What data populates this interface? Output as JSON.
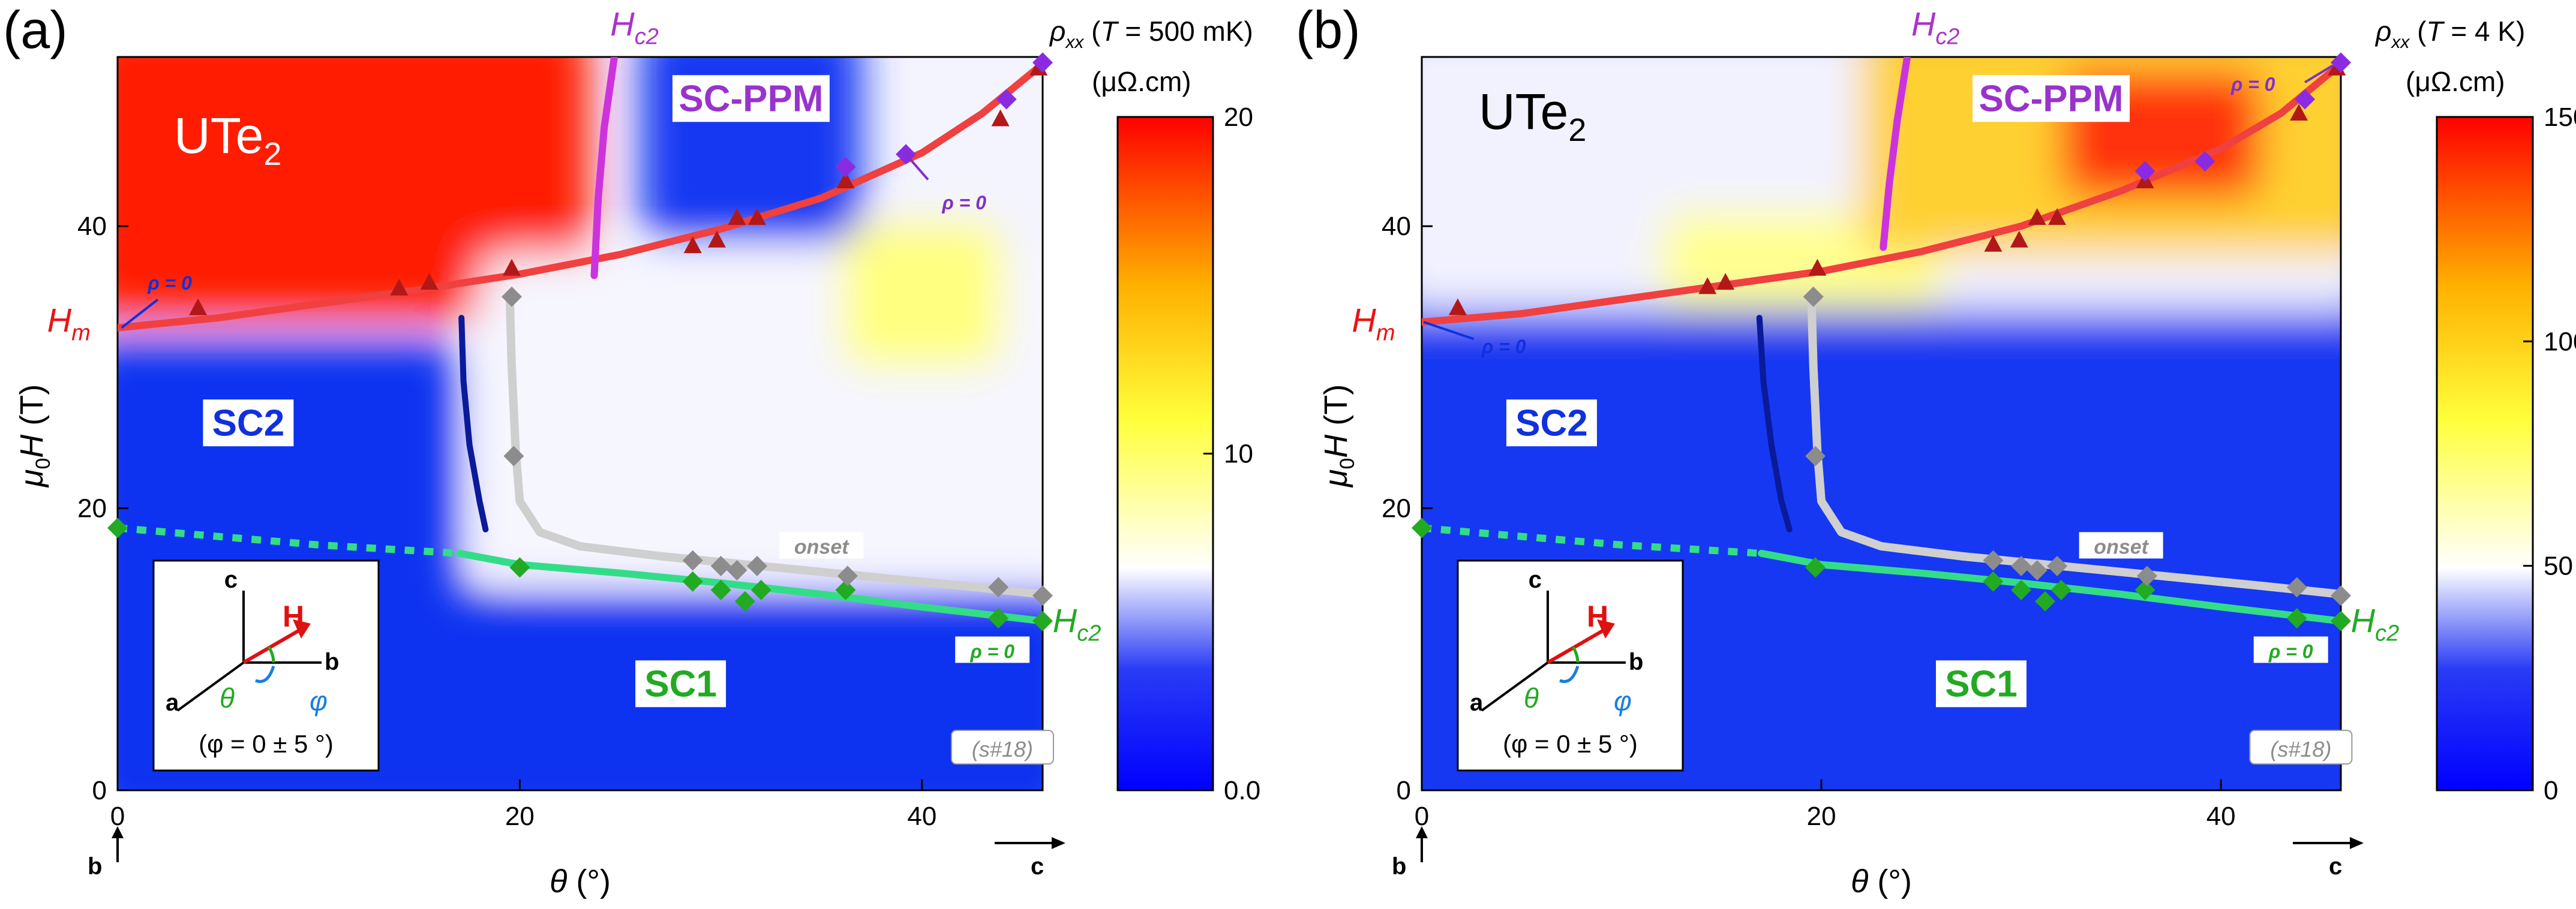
{
  "chart_data": [
    {
      "panel_label": "(a)",
      "type": "heatmap",
      "material": {
        "base": "UTe",
        "sub": "2"
      },
      "colorbar": {
        "title": {
          "rho": "ρ",
          "sub": "xx",
          "paren_open": " (",
          "T": "T",
          "rest": " = 500 mK)"
        },
        "unit": "(μΩ.cm)",
        "ticks": [
          {
            "value": 0,
            "label": "0.0"
          },
          {
            "value": 10,
            "label": "10"
          },
          {
            "value": 20,
            "label": "20"
          }
        ],
        "range": [
          0,
          20
        ],
        "colors": [
          "#0000ff",
          "#2a3cf4",
          "#ffffff",
          "#ffff3c",
          "#ffb000",
          "#ff0000"
        ]
      },
      "xaxis": {
        "label_main": "θ",
        "label_unit": " (°)",
        "range": [
          0,
          46
        ],
        "ticks": [
          0,
          20,
          40
        ],
        "left_end": "b",
        "right_end": "c"
      },
      "yaxis": {
        "label_main": "μ",
        "label_sub": "0",
        "label_H": "H",
        "label_unit": " (T)",
        "range": [
          0,
          52
        ],
        "ticks": [
          0,
          20,
          40
        ]
      },
      "regions": [
        {
          "text": "SC-PPM",
          "color": "#9933cc",
          "box": true,
          "theta": 31.5,
          "field": 48.5
        },
        {
          "text": "SC2",
          "color": "#1030e0",
          "box": true,
          "theta": 6.5,
          "field": 25.5
        },
        {
          "text": "SC1",
          "color": "#22aa22",
          "box": true,
          "theta": 28,
          "field": 7
        }
      ],
      "curve_labels": {
        "hc2_top": {
          "text": "H",
          "sub": "c2",
          "color": "#aa33cc",
          "theta": 24.5,
          "field": 53.5
        },
        "hm": {
          "text": "H",
          "sub": "m",
          "color": "#ee1111",
          "theta": -3.5,
          "field": 32.5
        },
        "hc2_right": {
          "text": "H",
          "sub": "c2",
          "color": "#22aa22",
          "theta": 46.5,
          "field": 11.2
        },
        "onset": {
          "text": "onset",
          "theta": 35,
          "field": 17.2
        },
        "rho_hm": {
          "text": "ρ = 0",
          "color": "#1030e0",
          "theta": 1.5,
          "field": 35.5
        },
        "rho_ppm": {
          "text": "ρ = 0",
          "color": "#8030cc",
          "theta": 41,
          "field": 41.2
        },
        "rho_sc1": {
          "text": "ρ = 0",
          "color": "#22aa22",
          "theta": 43.5,
          "field": 9.8
        },
        "sample": {
          "text": "(s#18)",
          "theta": 44,
          "field": 2.8
        }
      },
      "series": [
        {
          "name": "Hm",
          "kind": "line",
          "color": "#f04040",
          "theta": [
            0,
            5,
            10,
            15,
            20,
            25,
            30,
            35,
            40,
            43,
            46
          ],
          "field": [
            32.8,
            33.5,
            34.5,
            35.5,
            36.6,
            38,
            39.8,
            42,
            45.2,
            48,
            51.5
          ]
        },
        {
          "name": "Hm points",
          "kind": "triangle",
          "color": "#b21818",
          "theta": [
            4,
            14,
            15.5,
            19.6,
            28.6,
            29.8,
            30.8,
            31.8,
            36.2,
            43.9,
            45.8
          ],
          "field": [
            34.2,
            35.6,
            36.0,
            37.0,
            38.6,
            39.0,
            40.6,
            40.6,
            43.2,
            47.6,
            51.2
          ]
        },
        {
          "name": "Hc2 (PPM)",
          "kind": "line",
          "color": "#cc33dd",
          "theta": [
            23.7,
            23.9,
            24.2,
            24.7
          ],
          "field": [
            36.5,
            42,
            47,
            52
          ]
        },
        {
          "name": "PPM points",
          "kind": "diamond",
          "color": "#8a2be2",
          "theta": [
            36.2,
            39.2,
            44.2,
            46
          ],
          "field": [
            44.2,
            45.1,
            49.0,
            51.6
          ]
        },
        {
          "name": "Hc2 (SC1)",
          "kind": "line",
          "color": "#33dd88",
          "theta": [
            17,
            20,
            25,
            30,
            35,
            40,
            46
          ],
          "field": [
            16.8,
            16.0,
            15.4,
            14.7,
            13.9,
            13.0,
            12.0
          ]
        },
        {
          "name": "Hc2 (SC1) dotted",
          "kind": "dotted",
          "color": "#33dd88",
          "theta": [
            0,
            5,
            10,
            17
          ],
          "field": [
            18.6,
            18.0,
            17.4,
            16.8
          ]
        },
        {
          "name": "SC1 points",
          "kind": "diamond",
          "color": "#22aa22",
          "theta": [
            0,
            20,
            28.6,
            30,
            31.2,
            32,
            36.2,
            43.8,
            46
          ],
          "field": [
            18.6,
            15.8,
            14.8,
            14.2,
            13.4,
            14.2,
            14.2,
            12.2,
            12.0
          ]
        },
        {
          "name": "onset",
          "kind": "line",
          "color": "#cfcfcf",
          "theta": [
            19.5,
            19.6,
            19.8,
            20,
            21,
            23,
            27,
            32,
            37,
            42,
            46
          ],
          "field": [
            35,
            30,
            24,
            20.5,
            18.3,
            17.3,
            16.6,
            15.9,
            15.2,
            14.5,
            13.9
          ]
        },
        {
          "name": "onset points",
          "kind": "diamond",
          "color": "#8c8c8c",
          "theta": [
            19.6,
            19.7,
            28.6,
            30,
            30.8,
            31.8,
            36.3,
            43.8,
            46
          ],
          "field": [
            35,
            23.7,
            16.3,
            15.9,
            15.6,
            15.9,
            15.2,
            14.4,
            13.8
          ]
        },
        {
          "name": "SC2 boundary",
          "kind": "line",
          "color": "#0a1a99",
          "theta": [
            17.1,
            17.2,
            17.5,
            18,
            18.3
          ],
          "field": [
            33.5,
            29,
            24.5,
            20.5,
            18.5
          ]
        }
      ],
      "heatmap_blobs": [
        {
          "color": "#ff1a00",
          "theta_range": [
            0,
            23.5
          ],
          "field_range": [
            33.5,
            52
          ]
        },
        {
          "color": "#1838f2",
          "theta_range": [
            26,
            37
          ],
          "field_range": [
            39,
            52
          ]
        },
        {
          "color": "#f6f6ff",
          "theta_range": [
            18,
            46
          ],
          "field_range": [
            15,
            38
          ]
        },
        {
          "color": "#ffff80",
          "theta_range": [
            36,
            44
          ],
          "field_range": [
            30,
            40
          ]
        },
        {
          "color": "#1030f0",
          "theta_range": [
            0,
            17
          ],
          "field_range": [
            0,
            32
          ]
        },
        {
          "color": "#1030f0",
          "theta_range": [
            0,
            46
          ],
          "field_range": [
            0,
            14
          ]
        }
      ],
      "inset": {
        "H": "H",
        "a": "a",
        "b": "b",
        "c": "c",
        "theta": "θ",
        "phi": "φ",
        "phi_note": "(φ = 0 ± 5 °)"
      }
    },
    {
      "panel_label": "(b)",
      "type": "heatmap",
      "material": {
        "base": "UTe",
        "sub": "2"
      },
      "colorbar": {
        "title": {
          "rho": "ρ",
          "sub": "xx",
          "paren_open": " (",
          "T": "T",
          "rest": " = 4 K)"
        },
        "unit": "(μΩ.cm)",
        "ticks": [
          {
            "value": 0,
            "label": "0"
          },
          {
            "value": 50,
            "label": "50"
          },
          {
            "value": 100,
            "label": "100"
          },
          {
            "value": 150,
            "label": "150"
          }
        ],
        "range": [
          0,
          150
        ],
        "colors": [
          "#0000ff",
          "#2a3cf4",
          "#ffffff",
          "#ffff3c",
          "#ffb000",
          "#ff0000"
        ]
      },
      "xaxis": {
        "label_main": "θ",
        "label_unit": " (°)",
        "range": [
          0,
          46
        ],
        "ticks": [
          0,
          20,
          40
        ],
        "left_end": "b",
        "right_end": "c"
      },
      "yaxis": {
        "label_main": "μ",
        "label_sub": "0",
        "label_H": "H",
        "label_unit": " (T)",
        "range": [
          0,
          52
        ],
        "ticks": [
          0,
          20,
          40
        ]
      },
      "regions": [
        {
          "text": "SC-PPM",
          "color": "#9933cc",
          "box": true,
          "theta": 31.5,
          "field": 48.5
        },
        {
          "text": "SC2",
          "color": "#1030e0",
          "box": true,
          "theta": 6.5,
          "field": 25.5
        },
        {
          "text": "SC1",
          "color": "#22aa22",
          "box": true,
          "theta": 28,
          "field": 7
        }
      ],
      "curve_labels": {
        "hc2_top": {
          "text": "H",
          "sub": "c2",
          "color": "#aa33cc",
          "theta": 24.5,
          "field": 53.5
        },
        "hm": {
          "text": "H",
          "sub": "m",
          "color": "#ee1111",
          "theta": -3.5,
          "field": 32.5
        },
        "hc2_right": {
          "text": "H",
          "sub": "c2",
          "color": "#22aa22",
          "theta": 46.5,
          "field": 11.2
        },
        "onset": {
          "text": "onset",
          "theta": 35,
          "field": 17.2
        },
        "rho_hm": {
          "text": "ρ = 0",
          "color": "#1030e0",
          "theta": 3,
          "field": 31
        },
        "rho_ppm": {
          "text": "ρ = 0",
          "color": "#8030cc",
          "theta": 40.5,
          "field": 49.6
        },
        "rho_sc1": {
          "text": "ρ = 0",
          "color": "#22aa22",
          "theta": 43.5,
          "field": 9.8
        },
        "sample": {
          "text": "(s#18)",
          "theta": 44,
          "field": 2.8
        }
      },
      "series": [
        {
          "name": "Hm",
          "kind": "line",
          "color": "#f04040",
          "theta": [
            0,
            5,
            10,
            15,
            20,
            25,
            30,
            35,
            40,
            43,
            46
          ],
          "field": [
            33.2,
            33.8,
            34.8,
            35.8,
            36.8,
            38.2,
            40,
            42.5,
            45.5,
            48,
            51.5
          ]
        },
        {
          "name": "Hm points",
          "kind": "triangle",
          "color": "#b21818",
          "theta": [
            1.8,
            14.3,
            15.2,
            19.8,
            28.6,
            29.9,
            30.8,
            31.8,
            36.2,
            43.9,
            45.8
          ],
          "field": [
            34.2,
            35.7,
            36.0,
            37.0,
            38.7,
            39.0,
            40.6,
            40.6,
            43.2,
            48.0,
            51.2
          ]
        },
        {
          "name": "Hc2 (PPM)",
          "kind": "line",
          "color": "#cc33dd",
          "theta": [
            23.1,
            23.4,
            23.8,
            24.3
          ],
          "field": [
            38.5,
            43,
            47.5,
            52
          ]
        },
        {
          "name": "PPM points",
          "kind": "diamond",
          "color": "#8a2be2",
          "theta": [
            36.2,
            39.2,
            44.2,
            46
          ],
          "field": [
            43.9,
            44.6,
            49.0,
            51.6
          ]
        },
        {
          "name": "Hc2 (SC1)",
          "kind": "line",
          "color": "#33dd88",
          "theta": [
            17,
            20,
            25,
            30,
            35,
            40,
            46
          ],
          "field": [
            16.8,
            16.0,
            15.4,
            14.7,
            13.9,
            13.0,
            12.0
          ]
        },
        {
          "name": "Hc2 (SC1) dotted",
          "kind": "dotted",
          "color": "#33dd88",
          "theta": [
            0,
            5,
            10,
            17
          ],
          "field": [
            18.6,
            18.0,
            17.4,
            16.8
          ]
        },
        {
          "name": "SC1 points",
          "kind": "diamond",
          "color": "#22aa22",
          "theta": [
            0,
            19.7,
            28.6,
            30,
            31.2,
            32,
            36.2,
            43.8,
            46
          ],
          "field": [
            18.6,
            15.8,
            14.8,
            14.2,
            13.4,
            14.2,
            14.2,
            12.2,
            12.0
          ]
        },
        {
          "name": "onset",
          "kind": "line",
          "color": "#cfcfcf",
          "theta": [
            19.5,
            19.6,
            19.8,
            20,
            21,
            23,
            27,
            32,
            37,
            42,
            46
          ],
          "field": [
            35,
            30,
            24,
            20.5,
            18.3,
            17.3,
            16.6,
            15.9,
            15.2,
            14.5,
            13.9
          ]
        },
        {
          "name": "onset points",
          "kind": "diamond",
          "color": "#8c8c8c",
          "theta": [
            19.6,
            19.7,
            28.6,
            30,
            30.8,
            31.8,
            36.3,
            43.8,
            46
          ],
          "field": [
            35,
            23.7,
            16.3,
            15.9,
            15.6,
            15.9,
            15.2,
            14.4,
            13.8
          ]
        },
        {
          "name": "SC2 boundary",
          "kind": "line",
          "color": "#0a1a99",
          "theta": [
            16.9,
            17.1,
            17.5,
            18,
            18.4
          ],
          "field": [
            33.5,
            29,
            24.5,
            20.5,
            18.5
          ]
        }
      ],
      "heatmap_blobs": [
        {
          "color": "#f2f2ff",
          "theta_range": [
            0,
            46
          ],
          "field_range": [
            34,
            52
          ]
        },
        {
          "color": "#ffff90",
          "theta_range": [
            12,
            26
          ],
          "field_range": [
            34,
            41
          ]
        },
        {
          "color": "#ffd030",
          "theta_range": [
            22,
            46
          ],
          "field_range": [
            38,
            52
          ]
        },
        {
          "color": "#ff3010",
          "theta_range": [
            32,
            42
          ],
          "field_range": [
            42,
            51
          ]
        },
        {
          "color": "#1838f2",
          "theta_range": [
            0,
            46
          ],
          "field_range": [
            0,
            34
          ]
        }
      ],
      "inset": {
        "H": "H",
        "a": "a",
        "b": "b",
        "c": "c",
        "theta": "θ",
        "phi": "φ",
        "phi_note": "(φ = 0 ± 5 °)"
      }
    }
  ]
}
